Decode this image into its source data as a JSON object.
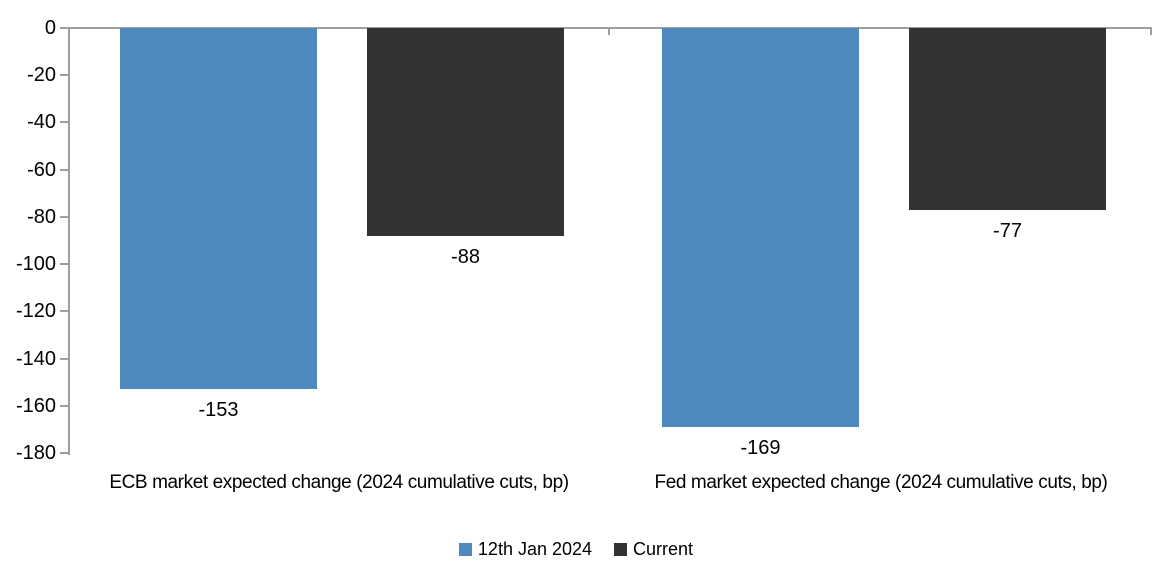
{
  "chart_data": {
    "type": "bar",
    "orientation": "vertical-grouped",
    "categories": [
      "ECB market expected change (2024 cumulative cuts, bp)",
      "Fed market expected change (2024 cumulative cuts, bp)"
    ],
    "series": [
      {
        "name": "12th Jan 2024",
        "color": "#4e8abe",
        "values": [
          -153,
          -169
        ],
        "labels": [
          "-153",
          "-169"
        ]
      },
      {
        "name": "Current",
        "color": "#333333",
        "values": [
          -88,
          -77
        ],
        "labels": [
          "-88",
          "-77"
        ]
      }
    ],
    "y_axis": {
      "min": -180,
      "max": 0,
      "ticks": [
        0,
        -20,
        -40,
        -60,
        -80,
        -100,
        -120,
        -140,
        -160,
        -180
      ]
    },
    "grid": false,
    "legend_position": "bottom",
    "colors": {
      "axis": "#9e9e9e",
      "text": "#000000",
      "background": "#ffffff"
    }
  }
}
